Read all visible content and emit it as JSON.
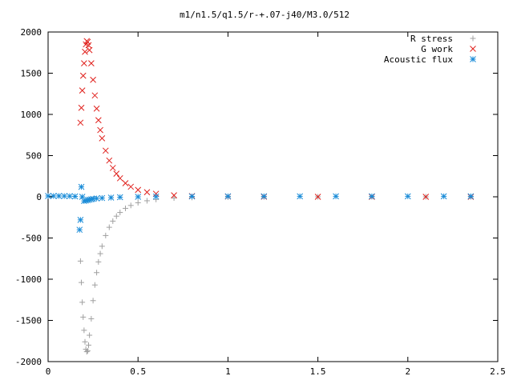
{
  "chart_data": {
    "type": "scatter",
    "title": "m1/n1.5/q1.5/r-+.07-j40/M3.0/512",
    "xlim": [
      0,
      2.5
    ],
    "ylim": [
      -2000,
      2000
    ],
    "xticks": [
      0,
      0.5,
      1,
      1.5,
      2,
      2.5
    ],
    "yticks": [
      -2000,
      -1500,
      -1000,
      -500,
      0,
      500,
      1000,
      1500,
      2000
    ],
    "xtick_labels": [
      "0",
      "0.5",
      "1",
      "1.5",
      "2",
      "2.5"
    ],
    "ytick_labels": [
      "-2000",
      "-1500",
      "-1000",
      "-500",
      "0",
      "500",
      "1000",
      "1500",
      "2000"
    ],
    "grid": false,
    "legend_position": "top-right",
    "series": [
      {
        "name": "R stress",
        "marker": "plus",
        "color": "#a0a0a0",
        "x": [
          0.18,
          0.185,
          0.19,
          0.195,
          0.2,
          0.205,
          0.21,
          0.215,
          0.22,
          0.225,
          0.23,
          0.24,
          0.25,
          0.26,
          0.27,
          0.28,
          0.29,
          0.3,
          0.32,
          0.34,
          0.36,
          0.38,
          0.4,
          0.43,
          0.46,
          0.5,
          0.55,
          0.6,
          0.7,
          0.8,
          1.0,
          1.2,
          1.5,
          1.8,
          2.1,
          2.35
        ],
        "y": [
          -780,
          -1040,
          -1280,
          -1460,
          -1620,
          -1760,
          -1850,
          -1880,
          -1870,
          -1800,
          -1680,
          -1480,
          -1260,
          -1070,
          -920,
          -790,
          -690,
          -600,
          -470,
          -370,
          -295,
          -235,
          -190,
          -140,
          -105,
          -72,
          -48,
          -32,
          -15,
          -8,
          -3,
          -1,
          0,
          0,
          0,
          0
        ]
      },
      {
        "name": "G work",
        "marker": "cross",
        "color": "#e0201c",
        "x": [
          0.18,
          0.185,
          0.19,
          0.195,
          0.2,
          0.205,
          0.21,
          0.215,
          0.22,
          0.225,
          0.23,
          0.24,
          0.25,
          0.26,
          0.27,
          0.28,
          0.29,
          0.3,
          0.32,
          0.34,
          0.36,
          0.38,
          0.4,
          0.43,
          0.46,
          0.5,
          0.55,
          0.6,
          0.7,
          0.8,
          1.0,
          1.2,
          1.5,
          1.8,
          2.1,
          2.35
        ],
        "y": [
          900,
          1080,
          1290,
          1470,
          1620,
          1760,
          1850,
          1890,
          1880,
          1840,
          1780,
          1620,
          1420,
          1230,
          1070,
          930,
          810,
          710,
          560,
          440,
          350,
          280,
          225,
          165,
          122,
          84,
          56,
          37,
          18,
          9,
          3,
          1,
          0,
          0,
          0,
          0
        ]
      },
      {
        "name": "Acoustic flux",
        "marker": "star",
        "color": "#1a8cd8",
        "x": [
          0.0,
          0.03,
          0.06,
          0.09,
          0.12,
          0.15,
          0.175,
          0.18,
          0.185,
          0.19,
          0.2,
          0.21,
          0.22,
          0.23,
          0.24,
          0.25,
          0.27,
          0.3,
          0.35,
          0.4,
          0.5,
          0.6,
          0.8,
          1.0,
          1.2,
          1.4,
          1.6,
          1.8,
          2.0,
          2.2,
          2.35
        ],
        "y": [
          10,
          10,
          10,
          9,
          8,
          5,
          -400,
          -280,
          120,
          0,
          -50,
          -45,
          -40,
          -35,
          -30,
          -25,
          -20,
          -15,
          -10,
          -5,
          0,
          3,
          5,
          6,
          6,
          6,
          6,
          6,
          6,
          6,
          6
        ]
      }
    ]
  }
}
